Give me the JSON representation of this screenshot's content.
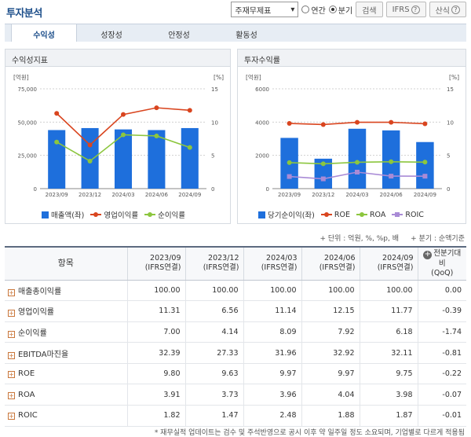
{
  "header": {
    "title": "투자분석",
    "select_value": "주재무제표",
    "radio_annual": "연간",
    "radio_quarter": "분기",
    "search_label": "검색",
    "ifrs_label": "IFRS",
    "formula_label": "산식"
  },
  "tabs": [
    "수익성",
    "성장성",
    "안정성",
    "활동성"
  ],
  "left_panel": {
    "title": "수익성지표"
  },
  "right_panel": {
    "title": "투자수익률"
  },
  "left_chart": {
    "type": "bar",
    "unit_left": "[억원]",
    "unit_right": "[%]",
    "categories": [
      "2023/09",
      "2023/12",
      "2024/03",
      "2024/06",
      "2024/09"
    ],
    "y_left_ticks": [
      "75,000",
      "50,000",
      "25,000",
      "0"
    ],
    "y_right_ticks": [
      "15",
      "10",
      "5",
      "0"
    ],
    "ylim_left": [
      0,
      75000
    ],
    "ylim_right": [
      0,
      15
    ],
    "series": [
      {
        "name": "매출액(좌)",
        "kind": "bar",
        "color": "#1e6fdc",
        "values": [
          44000,
          45500,
          44500,
          44000,
          45500
        ]
      },
      {
        "name": "영업이익률",
        "kind": "line",
        "color": "#d9451f",
        "values": [
          11.31,
          6.56,
          11.14,
          12.15,
          11.77
        ]
      },
      {
        "name": "순이익률",
        "kind": "line",
        "color": "#8cc63e",
        "values": [
          7.0,
          4.14,
          8.09,
          7.92,
          6.18
        ]
      }
    ]
  },
  "right_chart": {
    "type": "bar",
    "unit_left": "[억원]",
    "unit_right": "[%]",
    "categories": [
      "2023/09",
      "2023/12",
      "2024/03",
      "2024/06",
      "2024/09"
    ],
    "y_left_ticks": [
      "6000",
      "4000",
      "2000",
      "0"
    ],
    "y_right_ticks": [
      "15",
      "10",
      "5",
      "0"
    ],
    "ylim_left": [
      0,
      6000
    ],
    "ylim_right": [
      0,
      15
    ],
    "series": [
      {
        "name": "당기순이익(좌)",
        "kind": "bar",
        "color": "#1e6fdc",
        "values": [
          3050,
          1800,
          3600,
          3500,
          2800
        ]
      },
      {
        "name": "ROE",
        "kind": "line",
        "color": "#d9451f",
        "values": [
          9.8,
          9.63,
          9.97,
          9.97,
          9.75
        ]
      },
      {
        "name": "ROA",
        "kind": "line",
        "color": "#8cc63e",
        "values": [
          3.91,
          3.73,
          3.96,
          4.04,
          3.98
        ]
      },
      {
        "name": "ROIC",
        "kind": "line",
        "color": "#a98bd6",
        "values": [
          1.82,
          1.47,
          2.48,
          1.88,
          1.87
        ]
      }
    ]
  },
  "notes": {
    "unit_note": "+ 단위 : 억원, %, %p, 배",
    "period_note": "+ 분기 : 순액기준",
    "footer": "* 재무실적 업데이트는 검수 및 주석반영으로 공시 이후 약 일주일 정도 소요되며, 기업별로 다르게 적용됨"
  },
  "table": {
    "header_item": "항목",
    "periods": [
      {
        "date": "2023/09",
        "basis": "(IFRS연결)"
      },
      {
        "date": "2023/12",
        "basis": "(IFRS연결)"
      },
      {
        "date": "2024/03",
        "basis": "(IFRS연결)"
      },
      {
        "date": "2024/06",
        "basis": "(IFRS연결)"
      },
      {
        "date": "2024/09",
        "basis": "(IFRS연결)"
      }
    ],
    "change_header_1": "전분기대비",
    "change_header_2": "(QoQ)",
    "rows": [
      {
        "label": "매출총이익률",
        "values": [
          "100.00",
          "100.00",
          "100.00",
          "100.00",
          "100.00"
        ],
        "change": "0.00",
        "neg": false
      },
      {
        "label": "영업이익률",
        "values": [
          "11.31",
          "6.56",
          "11.14",
          "12.15",
          "11.77"
        ],
        "change": "-0.39",
        "neg": true
      },
      {
        "label": "순이익률",
        "values": [
          "7.00",
          "4.14",
          "8.09",
          "7.92",
          "6.18"
        ],
        "change": "-1.74",
        "neg": true
      },
      {
        "label": "EBITDA마진율",
        "values": [
          "32.39",
          "27.33",
          "31.96",
          "32.92",
          "32.11"
        ],
        "change": "-0.81",
        "neg": true
      },
      {
        "label": "ROE",
        "values": [
          "9.80",
          "9.63",
          "9.97",
          "9.97",
          "9.75"
        ],
        "change": "-0.22",
        "neg": true
      },
      {
        "label": "ROA",
        "values": [
          "3.91",
          "3.73",
          "3.96",
          "4.04",
          "3.98"
        ],
        "change": "-0.07",
        "neg": true
      },
      {
        "label": "ROIC",
        "values": [
          "1.82",
          "1.47",
          "2.48",
          "1.88",
          "1.87"
        ],
        "change": "-0.01",
        "neg": true
      }
    ]
  }
}
